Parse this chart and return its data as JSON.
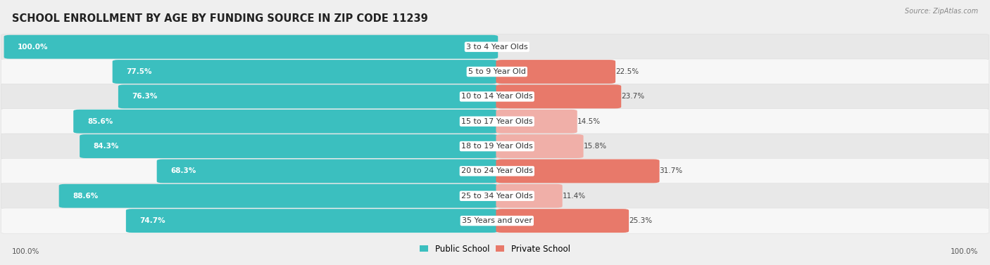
{
  "title": "SCHOOL ENROLLMENT BY AGE BY FUNDING SOURCE IN ZIP CODE 11239",
  "source": "Source: ZipAtlas.com",
  "categories": [
    "3 to 4 Year Olds",
    "5 to 9 Year Old",
    "10 to 14 Year Olds",
    "15 to 17 Year Olds",
    "18 to 19 Year Olds",
    "20 to 24 Year Olds",
    "25 to 34 Year Olds",
    "35 Years and over"
  ],
  "public_values": [
    100.0,
    77.5,
    76.3,
    85.6,
    84.3,
    68.3,
    88.6,
    74.7
  ],
  "private_values": [
    0.0,
    22.5,
    23.7,
    14.5,
    15.8,
    31.7,
    11.4,
    25.3
  ],
  "public_color": "#3BBFBF",
  "private_color": "#E8796A",
  "private_color_light": "#F0AFA8",
  "bg_color": "#EFEFEF",
  "row_bg_light": "#F7F7F7",
  "row_bg_dark": "#E8E8E8",
  "title_fontsize": 10.5,
  "label_fontsize": 8.0,
  "value_fontsize": 7.5,
  "legend_fontsize": 8.5,
  "axis_label_fontsize": 7.5,
  "left_axis_label": "100.0%",
  "right_axis_label": "100.0%"
}
